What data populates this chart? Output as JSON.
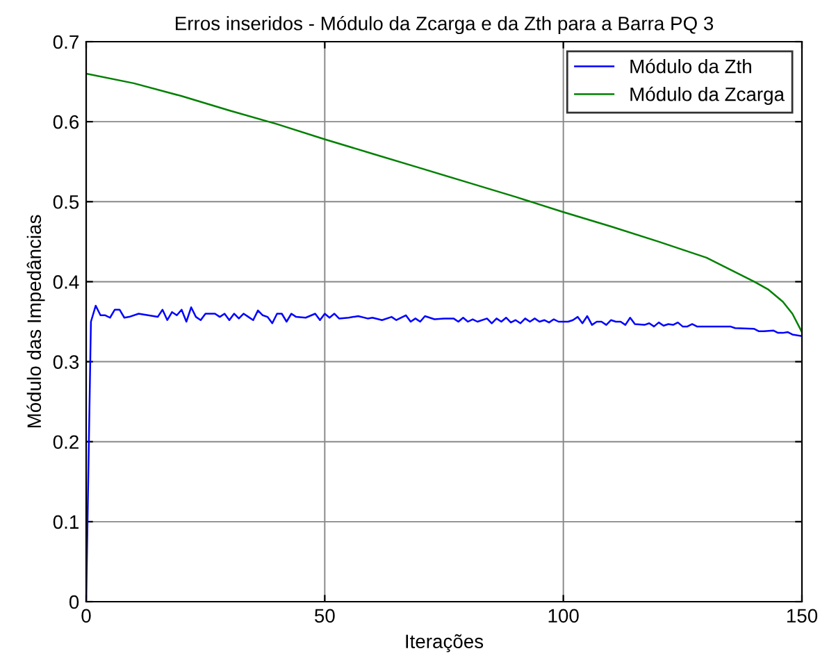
{
  "chart_data": {
    "type": "line",
    "title": "Erros inseridos - Módulo da Zcarga e da Zth para a Barra PQ 3",
    "xlabel": "Iterações",
    "ylabel": "Módulo das Impedâncias",
    "xlim": [
      0,
      150
    ],
    "ylim": [
      0,
      0.7
    ],
    "xticks": [
      0,
      50,
      100,
      150
    ],
    "yticks": [
      0,
      0.1,
      0.2,
      0.3,
      0.4,
      0.5,
      0.6,
      0.7
    ],
    "grid": true,
    "legend": "top right",
    "line_style": "solid",
    "marker": "none",
    "series": [
      {
        "name": "Módulo da Zth",
        "color": "#0000ff",
        "x": [
          0,
          1,
          2,
          3,
          4,
          5,
          6,
          7,
          8,
          9,
          11,
          13,
          15,
          16,
          17,
          18,
          19,
          20,
          21,
          22,
          23,
          24,
          25,
          27,
          28,
          29,
          30,
          31,
          32,
          33,
          34,
          35,
          36,
          37,
          38,
          39,
          40,
          41,
          42,
          43,
          44,
          46,
          48,
          49,
          50,
          51,
          52,
          53,
          55,
          57,
          59,
          60,
          62,
          64,
          65,
          67,
          68,
          69,
          70,
          71,
          73,
          75,
          77,
          78,
          79,
          80,
          81,
          82,
          84,
          85,
          86,
          87,
          88,
          89,
          90,
          91,
          92,
          93,
          94,
          95,
          96,
          97,
          98,
          99,
          101,
          102,
          103,
          104,
          105,
          106,
          107,
          108,
          109,
          110,
          111,
          112,
          113,
          114,
          115,
          117,
          118,
          119,
          120,
          121,
          122,
          123,
          124,
          125,
          126,
          127,
          128,
          130,
          135,
          136,
          140,
          141,
          142,
          144,
          145,
          146,
          147,
          148,
          150
        ],
        "values": [
          0,
          0.35,
          0.37,
          0.358,
          0.358,
          0.355,
          0.365,
          0.365,
          0.355,
          0.356,
          0.36,
          0.358,
          0.356,
          0.365,
          0.352,
          0.362,
          0.358,
          0.365,
          0.35,
          0.368,
          0.356,
          0.352,
          0.36,
          0.36,
          0.356,
          0.36,
          0.352,
          0.36,
          0.354,
          0.36,
          0.356,
          0.352,
          0.364,
          0.358,
          0.356,
          0.348,
          0.36,
          0.36,
          0.35,
          0.36,
          0.356,
          0.355,
          0.36,
          0.352,
          0.36,
          0.355,
          0.36,
          0.354,
          0.355,
          0.357,
          0.354,
          0.355,
          0.352,
          0.356,
          0.352,
          0.358,
          0.35,
          0.354,
          0.35,
          0.357,
          0.353,
          0.354,
          0.354,
          0.35,
          0.355,
          0.35,
          0.353,
          0.35,
          0.354,
          0.348,
          0.354,
          0.35,
          0.355,
          0.349,
          0.352,
          0.348,
          0.354,
          0.35,
          0.354,
          0.35,
          0.352,
          0.349,
          0.353,
          0.35,
          0.35,
          0.352,
          0.356,
          0.348,
          0.357,
          0.346,
          0.35,
          0.35,
          0.346,
          0.352,
          0.35,
          0.35,
          0.346,
          0.355,
          0.347,
          0.346,
          0.348,
          0.344,
          0.349,
          0.345,
          0.347,
          0.346,
          0.349,
          0.344,
          0.344,
          0.347,
          0.344,
          0.344,
          0.344,
          0.342,
          0.341,
          0.338,
          0.338,
          0.339,
          0.336,
          0.336,
          0.337,
          0.334,
          0.332
        ]
      },
      {
        "name": "Módulo da Zcarga",
        "color": "#008000",
        "x": [
          0,
          10,
          20,
          30,
          40,
          50,
          60,
          70,
          80,
          90,
          100,
          110,
          120,
          125,
          130,
          135,
          140,
          143,
          146,
          148,
          150
        ],
        "values": [
          0.66,
          0.648,
          0.632,
          0.614,
          0.597,
          0.578,
          0.56,
          0.542,
          0.524,
          0.506,
          0.487,
          0.469,
          0.45,
          0.44,
          0.43,
          0.415,
          0.4,
          0.39,
          0.375,
          0.36,
          0.337
        ]
      }
    ]
  }
}
